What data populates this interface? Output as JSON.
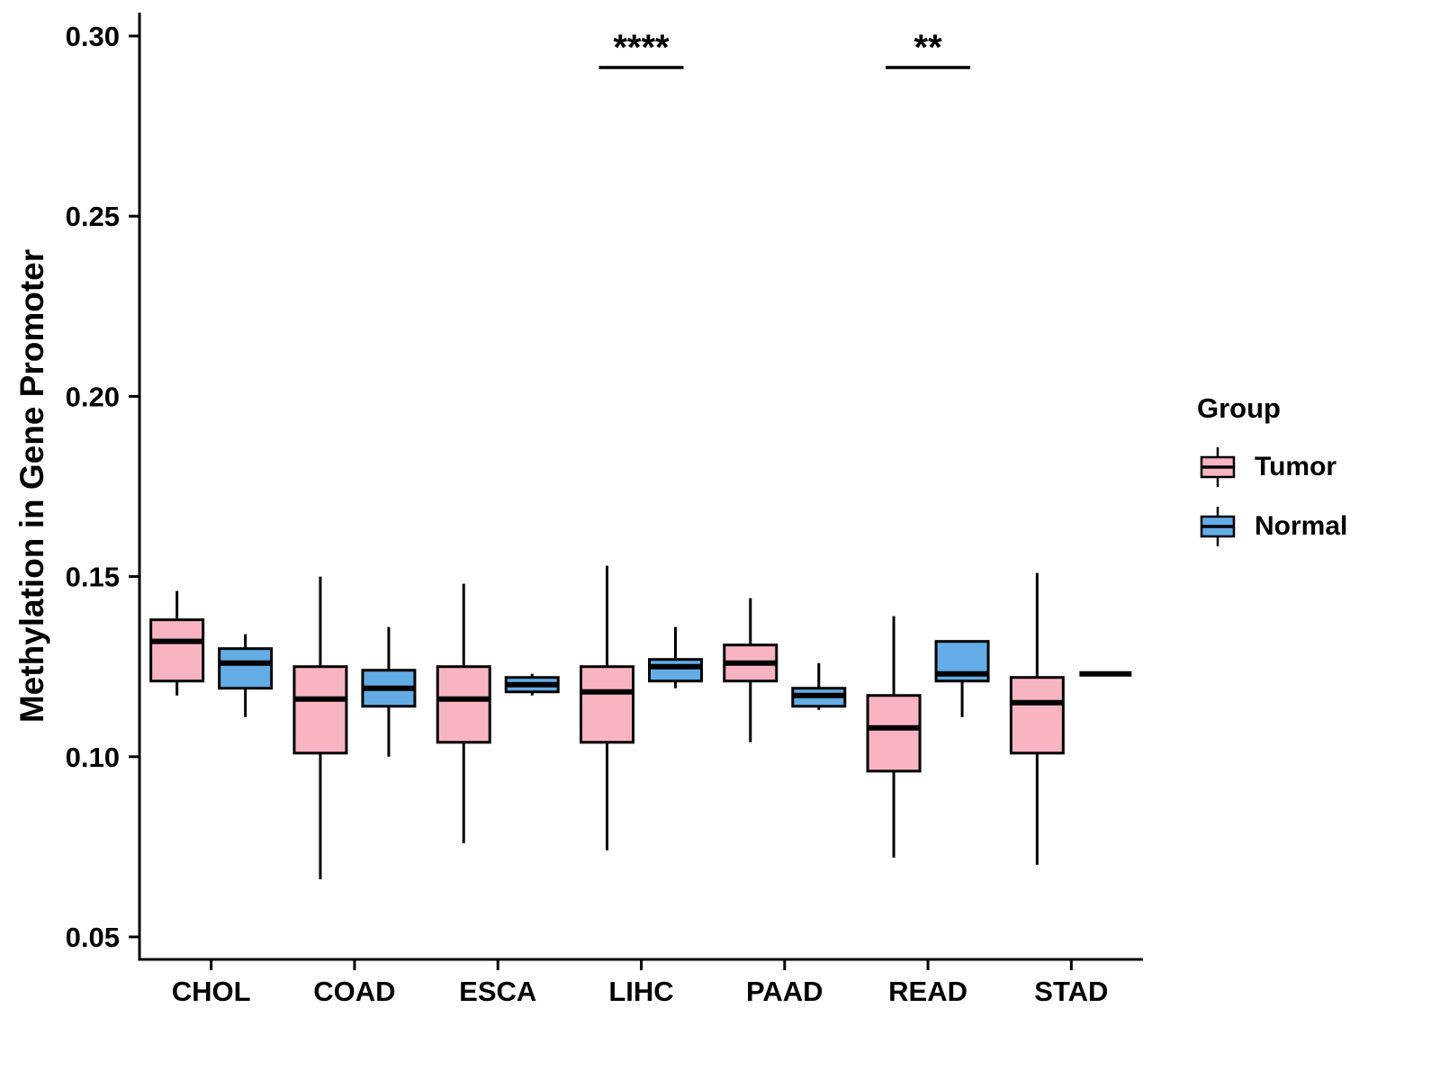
{
  "chart_data": {
    "type": "boxplot",
    "title": "",
    "xlabel": "",
    "ylabel": "Methylation in Gene Promoter",
    "ylim": [
      0.05,
      0.3
    ],
    "yticks": [
      0.05,
      0.1,
      0.15,
      0.2,
      0.25,
      0.3
    ],
    "categories": [
      "CHOL",
      "COAD",
      "ESCA",
      "LIHC",
      "PAAD",
      "READ",
      "STAD"
    ],
    "grid": false,
    "series": [
      {
        "name": "Tumor",
        "color": "#F9B4C2",
        "boxes": [
          {
            "min": 0.117,
            "q1": 0.121,
            "median": 0.132,
            "q3": 0.138,
            "max": 0.146
          },
          {
            "min": 0.066,
            "q1": 0.101,
            "median": 0.116,
            "q3": 0.125,
            "max": 0.15
          },
          {
            "min": 0.076,
            "q1": 0.104,
            "median": 0.116,
            "q3": 0.125,
            "max": 0.148
          },
          {
            "min": 0.074,
            "q1": 0.104,
            "median": 0.118,
            "q3": 0.125,
            "max": 0.153
          },
          {
            "min": 0.104,
            "q1": 0.121,
            "median": 0.126,
            "q3": 0.131,
            "max": 0.144
          },
          {
            "min": 0.072,
            "q1": 0.096,
            "median": 0.108,
            "q3": 0.117,
            "max": 0.139
          },
          {
            "min": 0.07,
            "q1": 0.101,
            "median": 0.115,
            "q3": 0.122,
            "max": 0.151
          }
        ]
      },
      {
        "name": "Normal",
        "color": "#63ACE5",
        "boxes": [
          {
            "min": 0.111,
            "q1": 0.119,
            "median": 0.126,
            "q3": 0.13,
            "max": 0.134
          },
          {
            "min": 0.1,
            "q1": 0.114,
            "median": 0.119,
            "q3": 0.124,
            "max": 0.136
          },
          {
            "min": 0.117,
            "q1": 0.118,
            "median": 0.12,
            "q3": 0.122,
            "max": 0.123
          },
          {
            "min": 0.119,
            "q1": 0.121,
            "median": 0.125,
            "q3": 0.127,
            "max": 0.136
          },
          {
            "min": 0.113,
            "q1": 0.114,
            "median": 0.117,
            "q3": 0.119,
            "max": 0.126
          },
          {
            "min": 0.111,
            "q1": 0.121,
            "median": 0.123,
            "q3": 0.132,
            "max": 0.132
          },
          {
            "min": 0.123,
            "q1": 0.123,
            "median": 0.123,
            "q3": 0.123,
            "max": 0.123
          }
        ]
      }
    ],
    "annotations": [
      {
        "category": "LIHC",
        "label": "****"
      },
      {
        "category": "READ",
        "label": "**"
      }
    ],
    "legend": {
      "title": "Group",
      "position": "right"
    }
  }
}
